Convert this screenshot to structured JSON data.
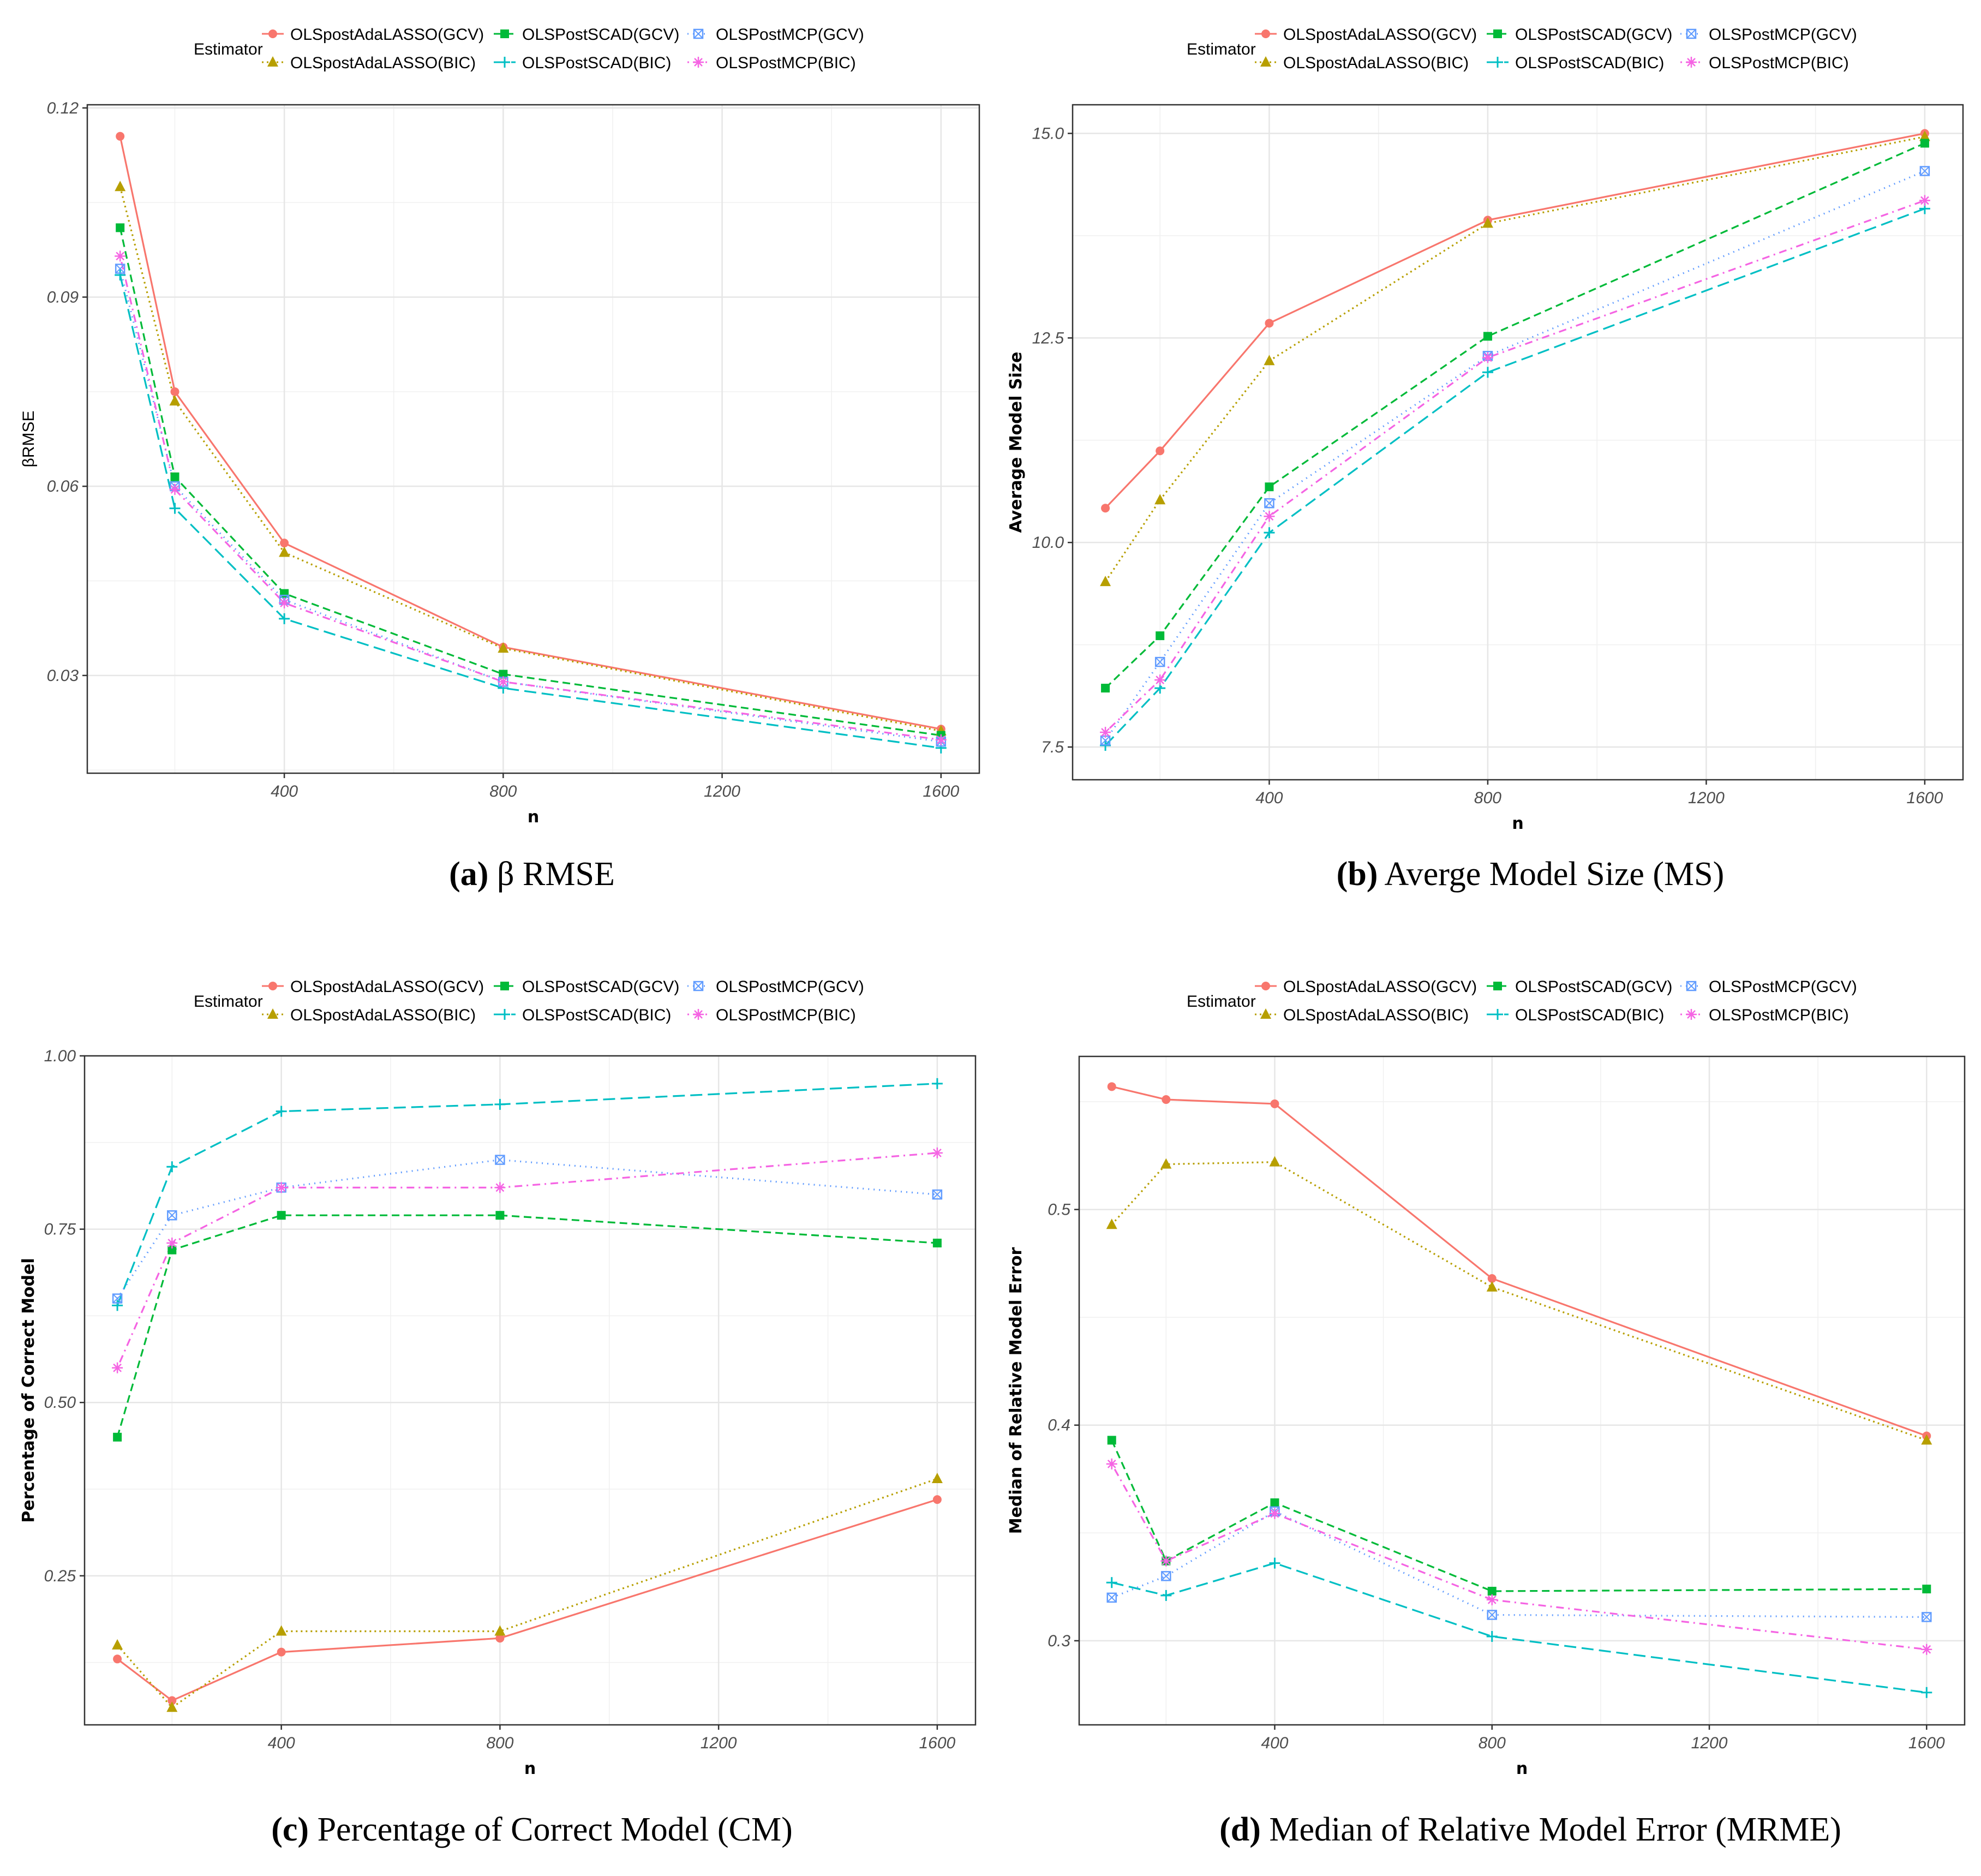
{
  "figure": {
    "x_values": [
      100,
      200,
      400,
      800,
      1600
    ],
    "estimators": [
      {
        "name": "OLSpostAdaLASSO(GCV)",
        "color": "#F8766D",
        "dash": "solid",
        "marker": "circle"
      },
      {
        "name": "OLSpostAdaLASSO(BIC)",
        "color": "#B79F00",
        "dash": "dotted",
        "marker": "triangle"
      },
      {
        "name": "OLSPostSCAD(GCV)",
        "color": "#00BA38",
        "dash": "dashed",
        "marker": "square"
      },
      {
        "name": "OLSPostSCAD(BIC)",
        "color": "#00BFC4",
        "dash": "longdash",
        "marker": "plus"
      },
      {
        "name": "OLSPostMCP(GCV)",
        "color": "#619CFF",
        "dash": "dotted2",
        "marker": "squarecross"
      },
      {
        "name": "OLSPostMCP(BIC)",
        "color": "#F564E3",
        "dash": "dotdash",
        "marker": "asterisk"
      }
    ]
  },
  "chart_data": [
    {
      "type": "line",
      "panel_label": "(a)",
      "caption": "β RMSE",
      "legend_title": "Estimator",
      "xlabel": "n",
      "ylabel": "βRMSE",
      "x": [
        100,
        200,
        400,
        800,
        1600
      ],
      "xlim": [
        40,
        1670
      ],
      "ylim": [
        0.0145,
        0.1205
      ],
      "xticks": [
        400,
        800,
        1200,
        1600
      ],
      "xtick_labels": [
        "400",
        "800",
        "1200",
        "1600"
      ],
      "yticks": [
        0.03,
        0.06,
        0.09,
        0.12
      ],
      "ytick_labels": [
        "0.03",
        "0.06",
        "0.09",
        "0.12"
      ],
      "series": [
        {
          "name": "OLSpostAdaLASSO(GCV)",
          "values": [
            0.1155,
            0.075,
            0.051,
            0.0345,
            0.0215
          ]
        },
        {
          "name": "OLSpostAdaLASSO(BIC)",
          "values": [
            0.1075,
            0.0735,
            0.0495,
            0.0343,
            0.0212
          ]
        },
        {
          "name": "OLSPostSCAD(GCV)",
          "values": [
            0.101,
            0.0615,
            0.043,
            0.0302,
            0.0205
          ]
        },
        {
          "name": "OLSPostSCAD(BIC)",
          "values": [
            0.0935,
            0.0565,
            0.039,
            0.028,
            0.0185
          ]
        },
        {
          "name": "OLSPostMCP(GCV)",
          "values": [
            0.0945,
            0.06,
            0.042,
            0.029,
            0.0195
          ]
        },
        {
          "name": "OLSPostMCP(BIC)",
          "values": [
            0.0965,
            0.0595,
            0.0415,
            0.029,
            0.0198
          ]
        }
      ]
    },
    {
      "type": "line",
      "panel_label": "(b)",
      "caption": "Averge Model Size (MS)",
      "legend_title": "Estimator",
      "xlabel": "n",
      "ylabel": "Average Model Size",
      "x": [
        100,
        200,
        400,
        800,
        1600
      ],
      "xlim": [
        40,
        1670
      ],
      "ylim": [
        7.1,
        15.35
      ],
      "xticks": [
        400,
        800,
        1200,
        1600
      ],
      "xtick_labels": [
        "400",
        "800",
        "1200",
        "1600"
      ],
      "yticks": [
        7.5,
        10.0,
        12.5,
        15.0
      ],
      "ytick_labels": [
        "7.5",
        "10.0",
        "12.5",
        "15.0"
      ],
      "series": [
        {
          "name": "OLSpostAdaLASSO(GCV)",
          "values": [
            10.42,
            11.12,
            12.68,
            13.94,
            15.0
          ]
        },
        {
          "name": "OLSpostAdaLASSO(BIC)",
          "values": [
            9.52,
            10.52,
            12.22,
            13.9,
            14.96
          ]
        },
        {
          "name": "OLSPostSCAD(GCV)",
          "values": [
            8.22,
            8.86,
            10.68,
            12.52,
            14.88
          ]
        },
        {
          "name": "OLSPostSCAD(BIC)",
          "values": [
            7.52,
            8.22,
            10.12,
            12.08,
            14.08
          ]
        },
        {
          "name": "OLSPostMCP(GCV)",
          "values": [
            7.58,
            8.54,
            10.48,
            12.28,
            14.54
          ]
        },
        {
          "name": "OLSPostMCP(BIC)",
          "values": [
            7.68,
            8.32,
            10.32,
            12.26,
            14.18
          ]
        }
      ]
    },
    {
      "type": "line",
      "panel_label": "(c)",
      "caption": "Percentage of Correct Model (CM)",
      "legend_title": "Estimator",
      "xlabel": "n",
      "ylabel": "Percentage of Correct Model",
      "x": [
        100,
        200,
        400,
        800,
        1600
      ],
      "xlim": [
        40,
        1670
      ],
      "ylim": [
        0.035,
        1.0
      ],
      "xticks": [
        400,
        800,
        1200,
        1600
      ],
      "xtick_labels": [
        "400",
        "800",
        "1200",
        "1600"
      ],
      "yticks": [
        0.25,
        0.5,
        0.75,
        1.0
      ],
      "ytick_labels": [
        "0.25",
        "0.50",
        "0.75",
        "1.00"
      ],
      "series": [
        {
          "name": "OLSpostAdaLASSO(GCV)",
          "values": [
            0.13,
            0.07,
            0.14,
            0.16,
            0.36
          ]
        },
        {
          "name": "OLSpostAdaLASSO(BIC)",
          "values": [
            0.15,
            0.06,
            0.17,
            0.17,
            0.39
          ]
        },
        {
          "name": "OLSPostSCAD(GCV)",
          "values": [
            0.45,
            0.72,
            0.77,
            0.77,
            0.73
          ]
        },
        {
          "name": "OLSPostSCAD(BIC)",
          "values": [
            0.64,
            0.84,
            0.92,
            0.93,
            0.96
          ]
        },
        {
          "name": "OLSPostMCP(GCV)",
          "values": [
            0.65,
            0.77,
            0.81,
            0.85,
            0.8
          ]
        },
        {
          "name": "OLSPostMCP(BIC)",
          "values": [
            0.55,
            0.73,
            0.81,
            0.81,
            0.86
          ]
        }
      ]
    },
    {
      "type": "line",
      "panel_label": "(d)",
      "caption": "Median of Relative Model Error (MRME)",
      "legend_title": "Estimator",
      "xlabel": "n",
      "ylabel": "Median of Relative Model Error",
      "x": [
        100,
        200,
        400,
        800,
        1600
      ],
      "xlim": [
        40,
        1670
      ],
      "ylim": [
        0.261,
        0.571
      ],
      "xticks": [
        400,
        800,
        1200,
        1600
      ],
      "xtick_labels": [
        "400",
        "800",
        "1200",
        "1600"
      ],
      "yticks": [
        0.3,
        0.4,
        0.5
      ],
      "ytick_labels": [
        "0.3",
        "0.4",
        "0.5"
      ],
      "series": [
        {
          "name": "OLSpostAdaLASSO(GCV)",
          "values": [
            0.557,
            0.551,
            0.549,
            0.468,
            0.395
          ]
        },
        {
          "name": "OLSpostAdaLASSO(BIC)",
          "values": [
            0.493,
            0.521,
            0.522,
            0.464,
            0.393
          ]
        },
        {
          "name": "OLSPostSCAD(GCV)",
          "values": [
            0.393,
            0.337,
            0.364,
            0.323,
            0.324
          ]
        },
        {
          "name": "OLSPostSCAD(BIC)",
          "values": [
            0.327,
            0.321,
            0.336,
            0.302,
            0.276
          ]
        },
        {
          "name": "OLSPostMCP(GCV)",
          "values": [
            0.32,
            0.33,
            0.36,
            0.312,
            0.311
          ]
        },
        {
          "name": "OLSPostMCP(BIC)",
          "values": [
            0.382,
            0.337,
            0.359,
            0.319,
            0.296
          ]
        }
      ]
    }
  ]
}
